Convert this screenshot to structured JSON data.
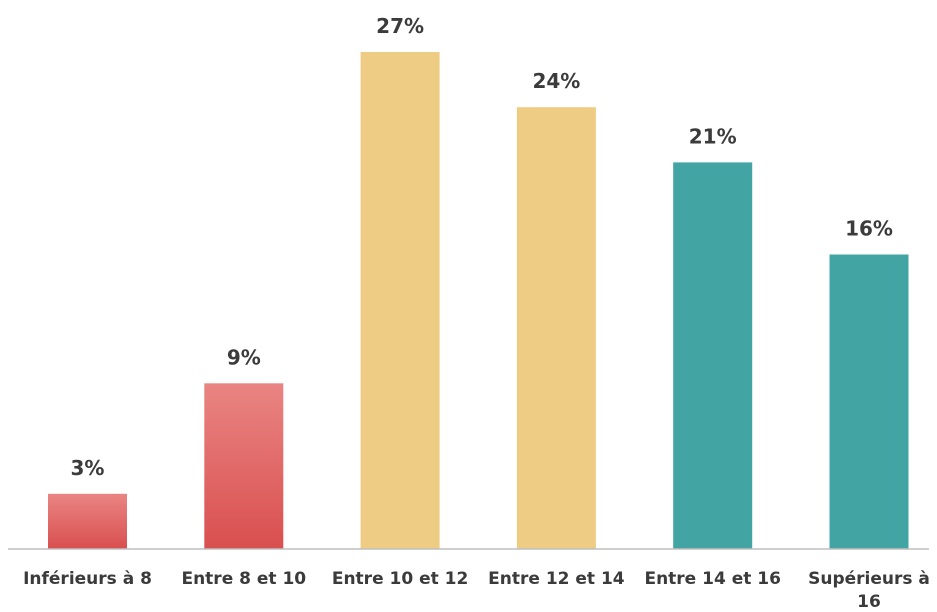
{
  "colors": {
    "red_top": "#e98583",
    "red_bottom": "#d94f4f",
    "yellow": "#efcc84",
    "teal": "#42a4a3",
    "axis": "#bfbfbf",
    "text": "#3b3b3b"
  },
  "chart_data": {
    "type": "bar",
    "title": "",
    "xlabel": "",
    "ylabel": "",
    "ylim": [
      0,
      27
    ],
    "grid": false,
    "legend": "none",
    "categories": [
      "Inférieurs à 8",
      "Entre 8 et 10",
      "Entre 10 et 12",
      "Entre 12 et 14",
      "Entre 14 et 16",
      "Supérieurs à 16"
    ],
    "values": [
      3,
      9,
      27,
      24,
      21,
      16
    ],
    "data_labels": [
      "3%",
      "9%",
      "27%",
      "24%",
      "21%",
      "16%"
    ],
    "bar_colors": [
      "red",
      "red",
      "yellow",
      "yellow",
      "teal",
      "teal"
    ]
  }
}
